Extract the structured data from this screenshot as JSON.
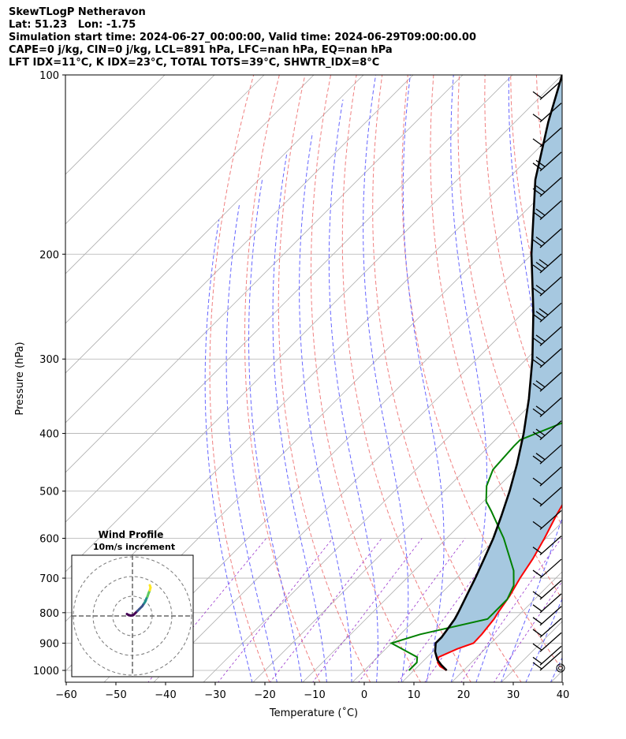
{
  "header": {
    "lines": [
      "SkewTLogP Netheravon",
      "Lat: 51.23   Lon: -1.75",
      "Simulation start time: 2024-06-27_00:00:00, Valid time: 2024-06-29T09:00:00.00",
      "CAPE=0 j/kg, CIN=0 j/kg, LCL=891 hPa, LFC=nan hPa, EQ=nan hPa",
      "LFT IDX=11°C, K IDX=23°C, TOTAL TOTS=39°C, SHWTR_IDX=8°C"
    ]
  },
  "chart_data": {
    "type": "line",
    "subtype": "skew-T log-P diagram",
    "xlabel": "Temperature (˚C)",
    "ylabel": "Pressure (hPa)",
    "xlim": [
      -60,
      40
    ],
    "ylim_hpa": [
      1050,
      100
    ],
    "y_scale": "log",
    "x_ticks": [
      "−60",
      "−50",
      "−40",
      "−30",
      "−20",
      "−10",
      "0",
      "10",
      "20",
      "30",
      "40"
    ],
    "y_ticks": [
      "100",
      "200",
      "300",
      "400",
      "500",
      "600",
      "700",
      "800",
      "900",
      "1000"
    ],
    "y_tick_values": [
      100,
      200,
      300,
      400,
      500,
      600,
      700,
      800,
      900,
      1000
    ],
    "grid": true,
    "series": [
      {
        "role": "temperature",
        "color": "#ff0000",
        "points": [
          [
            1000,
            16.6
          ],
          [
            985,
            14.5
          ],
          [
            970,
            13.2
          ],
          [
            950,
            12.3
          ],
          [
            920,
            14.4
          ],
          [
            900,
            16.5
          ],
          [
            870,
            16.4
          ],
          [
            820,
            15.8
          ],
          [
            800,
            15.3
          ],
          [
            750,
            14.3
          ],
          [
            700,
            12.8
          ],
          [
            650,
            11.5
          ],
          [
            600,
            9.7
          ],
          [
            550,
            7.5
          ],
          [
            500,
            5.4
          ],
          [
            450,
            2.9
          ],
          [
            400,
            0.1
          ],
          [
            350,
            -1.5
          ],
          [
            330,
            -1.9
          ],
          [
            300,
            -3.0
          ],
          [
            280,
            -4.0
          ],
          [
            250,
            -6.1
          ],
          [
            230,
            -8.1
          ],
          [
            220,
            -8.5
          ],
          [
            210,
            -7.7
          ],
          [
            190,
            -5.2
          ],
          [
            170,
            -2.0
          ],
          [
            150,
            1.5
          ],
          [
            140,
            1.7
          ],
          [
            130,
            1.6
          ],
          [
            120,
            1.3
          ],
          [
            110,
            0.9
          ],
          [
            100,
            0.1
          ]
        ]
      },
      {
        "role": "dewpoint",
        "color": "#008000",
        "points": [
          [
            1000,
            9.0
          ],
          [
            970,
            9.0
          ],
          [
            950,
            8.0
          ],
          [
            900,
            0.0
          ],
          [
            870,
            4.0
          ],
          [
            820,
            14.5
          ],
          [
            760,
            14.5
          ],
          [
            720,
            13.0
          ],
          [
            680,
            10.0
          ],
          [
            600,
            1.5
          ],
          [
            540,
            -6.5
          ],
          [
            520,
            -9.5
          ],
          [
            490,
            -12.5
          ],
          [
            460,
            -14.5
          ],
          [
            420,
            -15.0
          ],
          [
            410,
            -15.0
          ],
          [
            360,
            -4.9
          ],
          [
            340,
            -6.0
          ],
          [
            300,
            -10.5
          ],
          [
            280,
            -13.0
          ],
          [
            270,
            -14.5
          ],
          [
            245,
            -18.5
          ],
          [
            220,
            -22.0
          ],
          [
            200,
            -25.5
          ],
          [
            180,
            -27.5
          ],
          [
            170,
            -30.0
          ],
          [
            160,
            -33.6
          ],
          [
            148,
            -36.5
          ],
          [
            130,
            -33.0
          ],
          [
            110,
            -29.5
          ],
          [
            100,
            -28.0
          ]
        ]
      },
      {
        "role": "parcel",
        "color": "#000000",
        "points": [
          [
            1000,
            16.6
          ],
          [
            980,
            14.5
          ],
          [
            960,
            12.6
          ],
          [
            930,
            10.5
          ],
          [
            900,
            8.9
          ],
          [
            880,
            8.9
          ],
          [
            860,
            8.6
          ],
          [
            820,
            7.9
          ],
          [
            800,
            7.3
          ],
          [
            750,
            5.6
          ],
          [
            700,
            3.8
          ],
          [
            650,
            1.7
          ],
          [
            600,
            -0.6
          ],
          [
            550,
            -3.5
          ],
          [
            500,
            -6.8
          ],
          [
            450,
            -10.8
          ],
          [
            400,
            -15.6
          ],
          [
            350,
            -21.5
          ],
          [
            300,
            -28.8
          ],
          [
            250,
            -38.1
          ],
          [
            200,
            -50.1
          ],
          [
            150,
            -64.3
          ],
          [
            120,
            -73.3
          ],
          [
            100,
            -80.0
          ]
        ]
      }
    ],
    "shaded_area": "between parcel and temperature",
    "reference_lines": [
      "isotherms",
      "dry adiabats",
      "moist adiabats",
      "mixing ratio lines"
    ],
    "wind_barbs": [
      {
        "p": 1000,
        "barbs": 1
      },
      {
        "p": 980,
        "barbs": 1
      },
      {
        "p": 930,
        "barbs": 1
      },
      {
        "p": 880,
        "barbs": 1
      },
      {
        "p": 840,
        "barbs": 1
      },
      {
        "p": 800,
        "barbs": 1
      },
      {
        "p": 760,
        "barbs": 1
      },
      {
        "p": 700,
        "barbs": 1
      },
      {
        "p": 640,
        "barbs": 1
      },
      {
        "p": 580,
        "barbs": 1
      },
      {
        "p": 530,
        "barbs": 1
      },
      {
        "p": 490,
        "barbs": 1
      },
      {
        "p": 450,
        "barbs": 2
      },
      {
        "p": 410,
        "barbs": 2
      },
      {
        "p": 375,
        "barbs": 2
      },
      {
        "p": 340,
        "barbs": 2
      },
      {
        "p": 310,
        "barbs": 2
      },
      {
        "p": 285,
        "barbs": 2
      },
      {
        "p": 260,
        "barbs": 3
      },
      {
        "p": 235,
        "barbs": 2
      },
      {
        "p": 215,
        "barbs": 3
      },
      {
        "p": 195,
        "barbs": 2
      },
      {
        "p": 175,
        "barbs": 2
      },
      {
        "p": 160,
        "barbs": 2
      },
      {
        "p": 145,
        "barbs": 2
      },
      {
        "p": 132,
        "barbs": 1
      },
      {
        "p": 120,
        "barbs": 1
      },
      {
        "p": 110,
        "barbs": 1
      }
    ],
    "hodograph": {
      "title": "Wind Profile",
      "subtitle": "10m/s increment",
      "ring_increment_ms": 10,
      "rings": 3,
      "u": [
        -2.8,
        -2.0,
        -0.8,
        0.5,
        1.5,
        2.5,
        3.5,
        4.5,
        5.0,
        5.5,
        6.0,
        6.5,
        6.8,
        7.0,
        7.3,
        7.6,
        7.8,
        8.0,
        8.2,
        8.5,
        8.8,
        9.0,
        9.2,
        9.0,
        8.8
      ],
      "v": [
        1.0,
        0.5,
        0.2,
        0.5,
        1.5,
        2.5,
        3.5,
        4.5,
        5.0,
        5.8,
        6.5,
        7.3,
        8.0,
        8.6,
        9.2,
        9.8,
        10.4,
        11.0,
        11.6,
        12.3,
        13.0,
        13.8,
        14.4,
        15.0,
        15.6
      ],
      "colormap": [
        "#440154",
        "#3b528b",
        "#21918c",
        "#5ec962",
        "#fde725"
      ]
    }
  }
}
